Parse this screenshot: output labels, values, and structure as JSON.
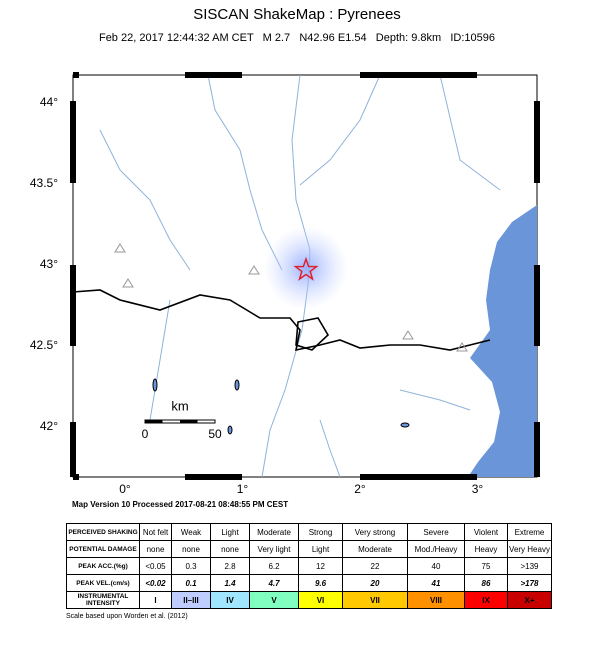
{
  "header": {
    "title": "SISCAN ShakeMap : Pyrenees",
    "subtitle": "Feb 22, 2017 12:44:32 AM CET   M 2.7   N42.96 E1.54   Depth: 9.8km   ID:10596"
  },
  "map": {
    "lat_ticks": [
      {
        "value": 44,
        "label": "44°"
      },
      {
        "value": 43.5,
        "label": "43.5°"
      },
      {
        "value": 43,
        "label": "43°"
      },
      {
        "value": 42.5,
        "label": "42.5°"
      },
      {
        "value": 42,
        "label": "42°"
      }
    ],
    "lon_ticks": [
      {
        "value": 0,
        "label": "0°"
      },
      {
        "value": 1,
        "label": "1°"
      },
      {
        "value": 2,
        "label": "2°"
      },
      {
        "value": 3,
        "label": "3°"
      }
    ],
    "scale_bar": {
      "unit": "km",
      "start": 0,
      "end": 50
    },
    "version": "Map Version 10 Processed 2017-08-21 08:48:55 PM CEST"
  },
  "table": {
    "row_labels": [
      "PERCEIVED SHAKING",
      "POTENTIAL DAMAGE",
      "PEAK ACC.(%g)",
      "PEAK VEL.(cm/s)",
      "INSTRUMENTAL INTENSITY"
    ],
    "rows": [
      [
        "Not felt",
        "Weak",
        "Light",
        "Moderate",
        "Strong",
        "Very strong",
        "Severe",
        "Violent",
        "Extreme"
      ],
      [
        "none",
        "none",
        "none",
        "Very light",
        "Light",
        "Moderate",
        "Mod./Heavy",
        "Heavy",
        "Very Heavy"
      ],
      [
        "<0.05",
        0.3,
        2.8,
        6.2,
        12,
        22,
        40,
        75,
        ">139"
      ],
      [
        "<0.02",
        0.1,
        1.4,
        4.7,
        9.6,
        20,
        41,
        86,
        ">178"
      ],
      [
        "I",
        "II–III",
        "IV",
        "V",
        "VI",
        "VII",
        "VIII",
        "IX",
        "X+"
      ]
    ],
    "note": "Scale based upon Worden et al. (2012)"
  }
}
